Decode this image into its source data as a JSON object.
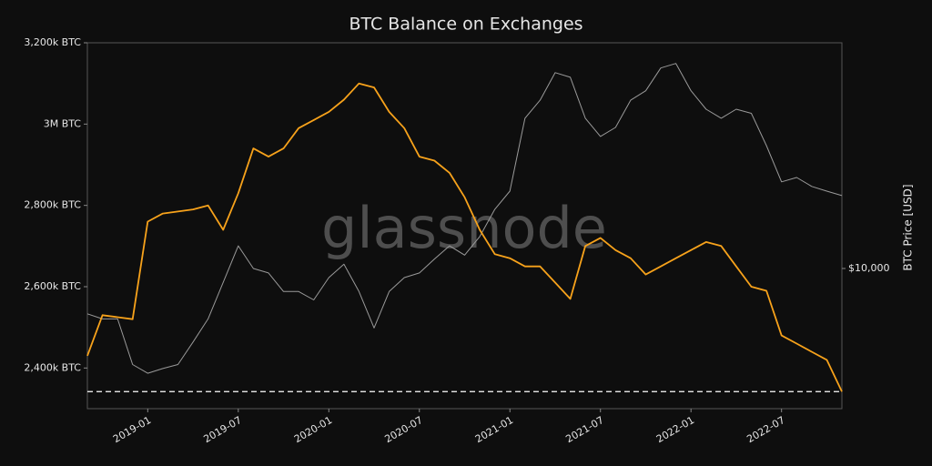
{
  "chart_data": {
    "type": "line",
    "title": "BTC Balance on Exchanges",
    "y2label": "BTC Price [USD]",
    "watermark": "glassnode",
    "x": [
      "2018-09",
      "2018-10",
      "2018-11",
      "2018-12",
      "2019-01",
      "2019-02",
      "2019-03",
      "2019-04",
      "2019-05",
      "2019-06",
      "2019-07",
      "2019-08",
      "2019-09",
      "2019-10",
      "2019-11",
      "2019-12",
      "2020-01",
      "2020-02",
      "2020-03",
      "2020-04",
      "2020-05",
      "2020-06",
      "2020-07",
      "2020-08",
      "2020-09",
      "2020-10",
      "2020-11",
      "2020-12",
      "2021-01",
      "2021-02",
      "2021-03",
      "2021-04",
      "2021-05",
      "2021-06",
      "2021-07",
      "2021-08",
      "2021-09",
      "2021-10",
      "2021-11",
      "2021-12",
      "2022-01",
      "2022-02",
      "2022-03",
      "2022-04",
      "2022-05",
      "2022-06",
      "2022-07",
      "2022-08",
      "2022-09",
      "2022-10",
      "2022-11"
    ],
    "series": [
      {
        "color": "#9a9a9a",
        "axis": "y2",
        "values": [
          6600,
          6300,
          6300,
          4150,
          3830,
          4000,
          4150,
          5100,
          6300,
          8800,
          12300,
          10000,
          9600,
          8100,
          8100,
          7500,
          9200,
          10400,
          8100,
          5800,
          8100,
          9200,
          9600,
          10900,
          12300,
          11300,
          13400,
          17200,
          20300,
          39600,
          46700,
          60100,
          57600,
          39600,
          33500,
          36400,
          46700,
          50900,
          62700,
          65400,
          50900,
          43000,
          39600,
          43000,
          41400,
          30800,
          22100,
          23000,
          21200,
          20300,
          19500
        ]
      },
      {
        "color": "#f7a21b",
        "values": [
          2430000,
          2530000,
          2525000,
          2520000,
          2760000,
          2780000,
          2785000,
          2790000,
          2800000,
          2740000,
          2830000,
          2940000,
          2920000,
          2940000,
          2990000,
          3010000,
          3030000,
          3060000,
          3100000,
          3090000,
          3030000,
          2990000,
          2920000,
          2910000,
          2880000,
          2820000,
          2740000,
          2680000,
          2670000,
          2650000,
          2650000,
          2610000,
          2570000,
          2700000,
          2720000,
          2690000,
          2670000,
          2630000,
          2650000,
          2670000,
          2690000,
          2710000,
          2700000,
          2650000,
          2600000,
          2590000,
          2480000,
          2460000,
          2440000,
          2420000,
          2342000
        ]
      }
    ],
    "reference_line": 2342000,
    "xlim": [
      "2018-09",
      "2022-11"
    ],
    "xticks": [
      "2019-01",
      "2019-07",
      "2020-01",
      "2020-07",
      "2021-01",
      "2021-07",
      "2022-01",
      "2022-07"
    ],
    "ylim": [
      2300000,
      3200000
    ],
    "yticks": [
      {
        "value": 2400000,
        "label": "2,400k BTC"
      },
      {
        "value": 2600000,
        "label": "2,600k BTC"
      },
      {
        "value": 2800000,
        "label": "2,800k BTC"
      },
      {
        "value": 3000000,
        "label": "3M BTC"
      },
      {
        "value": 3200000,
        "label": "3,200k BTC"
      }
    ],
    "y2lim": [
      2770,
      79000
    ],
    "y2log": true,
    "y2ticks": [
      {
        "value": 10000,
        "label": "$10,000"
      }
    ]
  }
}
